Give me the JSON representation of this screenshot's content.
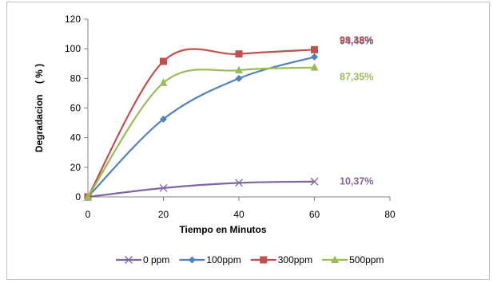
{
  "chart_data": {
    "type": "line",
    "xlabel": "Tiempo en Minutos",
    "ylabel": "Degradacion    ( % )",
    "xlim": [
      0,
      80
    ],
    "ylim": [
      0,
      120
    ],
    "x_ticks": [
      0,
      20,
      40,
      60,
      80
    ],
    "y_ticks": [
      0,
      20,
      40,
      60,
      80,
      100,
      120
    ],
    "grid": false,
    "smooth": true,
    "legend_position": "bottom",
    "series": [
      {
        "name": "0 ppm",
        "color": "#8064a2",
        "marker": "x",
        "x": [
          0,
          20,
          40,
          60
        ],
        "y": [
          0,
          6,
          9.5,
          10.37
        ],
        "end_label": "10,37%"
      },
      {
        "name": "100ppm",
        "color": "#4f81bd",
        "marker": "diamond",
        "x": [
          0,
          20,
          40,
          60
        ],
        "y": [
          0,
          52.5,
          80,
          94.48
        ],
        "end_label": "94,48%"
      },
      {
        "name": "300ppm",
        "color": "#c0504d",
        "marker": "square",
        "x": [
          0,
          20,
          40,
          60
        ],
        "y": [
          0,
          91.5,
          96.5,
          99.38
        ],
        "end_label": "99,38%"
      },
      {
        "name": "500ppm",
        "color": "#9bbb59",
        "marker": "triangle",
        "x": [
          0,
          20,
          40,
          60
        ],
        "y": [
          0,
          77,
          85.5,
          87.35
        ],
        "end_label": "87,35%"
      }
    ]
  }
}
